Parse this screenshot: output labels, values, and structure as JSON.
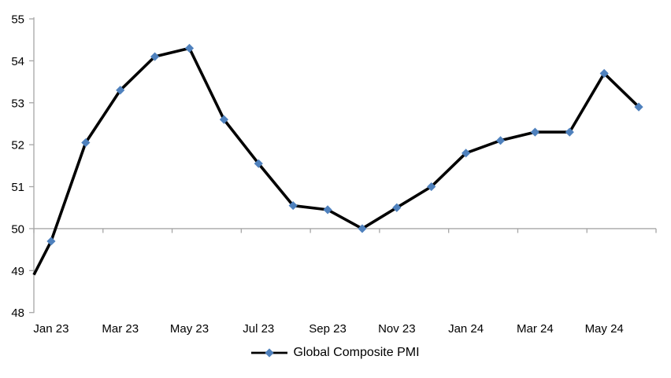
{
  "chart_data": {
    "type": "line",
    "title": "",
    "xlabel": "",
    "ylabel": "",
    "ylim": [
      48,
      55
    ],
    "y_ticks": [
      48,
      49,
      50,
      51,
      52,
      53,
      54,
      55
    ],
    "x_tick_labels": [
      "Jan 23",
      "Mar 23",
      "May 23",
      "Jul 23",
      "Sep 23",
      "Nov 23",
      "Jan 24",
      "Mar 24",
      "May 24"
    ],
    "x_tick_label_interval": 2,
    "baseline_value": 50,
    "grid": "none (single horizontal axis line drawn at value 50 with tick marks)",
    "legend_position": "bottom-center",
    "series": [
      {
        "name": "Global Composite PMI",
        "marker": "diamond",
        "marker_color": "#4F81BD",
        "line_color": "#000000",
        "x": [
          "Jan 23",
          "Feb 23",
          "Mar 23",
          "Apr 23",
          "May 23",
          "Jun 23",
          "Jul 23",
          "Aug 23",
          "Sep 23",
          "Oct 23",
          "Nov 23",
          "Dec 23",
          "Jan 24",
          "Feb 24",
          "Mar 24",
          "Apr 24",
          "May 24",
          "Jun 24"
        ],
        "values": [
          49.7,
          52.05,
          53.3,
          54.1,
          54.3,
          52.6,
          51.55,
          50.55,
          50.45,
          50.0,
          50.5,
          51.0,
          51.8,
          52.1,
          52.3,
          52.3,
          53.7,
          52.9
        ],
        "edge_entry_value": 48.9
      }
    ],
    "colors": {
      "axis": "#A6A6A6",
      "text": "#000000",
      "line": "#000000",
      "marker": "#4F81BD",
      "background": "#FFFFFF"
    }
  },
  "legend": {
    "label": "Global Composite PMI"
  }
}
